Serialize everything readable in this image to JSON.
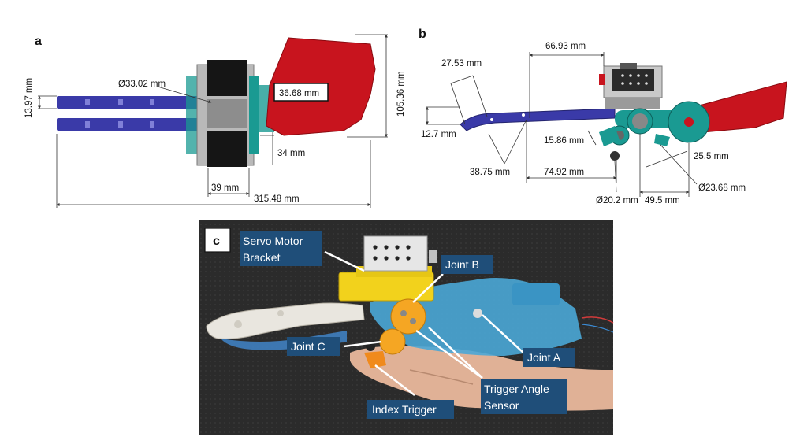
{
  "panels": {
    "a": "a",
    "b": "b",
    "c": "c"
  },
  "dims_a": {
    "height_left": "13.97 mm",
    "diameter": "Ø33.02 mm",
    "width_box": "36.68 mm",
    "height_right": "105.36 mm",
    "d34": "34 mm",
    "d39": "39 mm",
    "total": "315.48 mm"
  },
  "dims_b": {
    "d6693": "66.93 mm",
    "d2753": "27.53 mm",
    "d127": "12.7 mm",
    "d1586": "15.86 mm",
    "d3875": "38.75 mm",
    "d7492": "74.92 mm",
    "d255": "25.5 mm",
    "d2368": "Ø23.68 mm",
    "d202": "Ø20.2 mm",
    "d495": "49.5 mm"
  },
  "labels_c": {
    "servo_line1": "Servo Motor",
    "servo_line2": "Bracket",
    "joint_b": "Joint B",
    "joint_c": "Joint C",
    "joint_a": "Joint A",
    "trigger_line1": "Trigger Angle",
    "trigger_line2": "Sensor",
    "index_trigger": "Index Trigger"
  },
  "colors": {
    "finger_blue": "#3a3aa8",
    "shell_red": "#c8141e",
    "teal": "#1a9a92",
    "label_bg": "#1f4e79",
    "photo_bg": "#2a2a2a"
  }
}
